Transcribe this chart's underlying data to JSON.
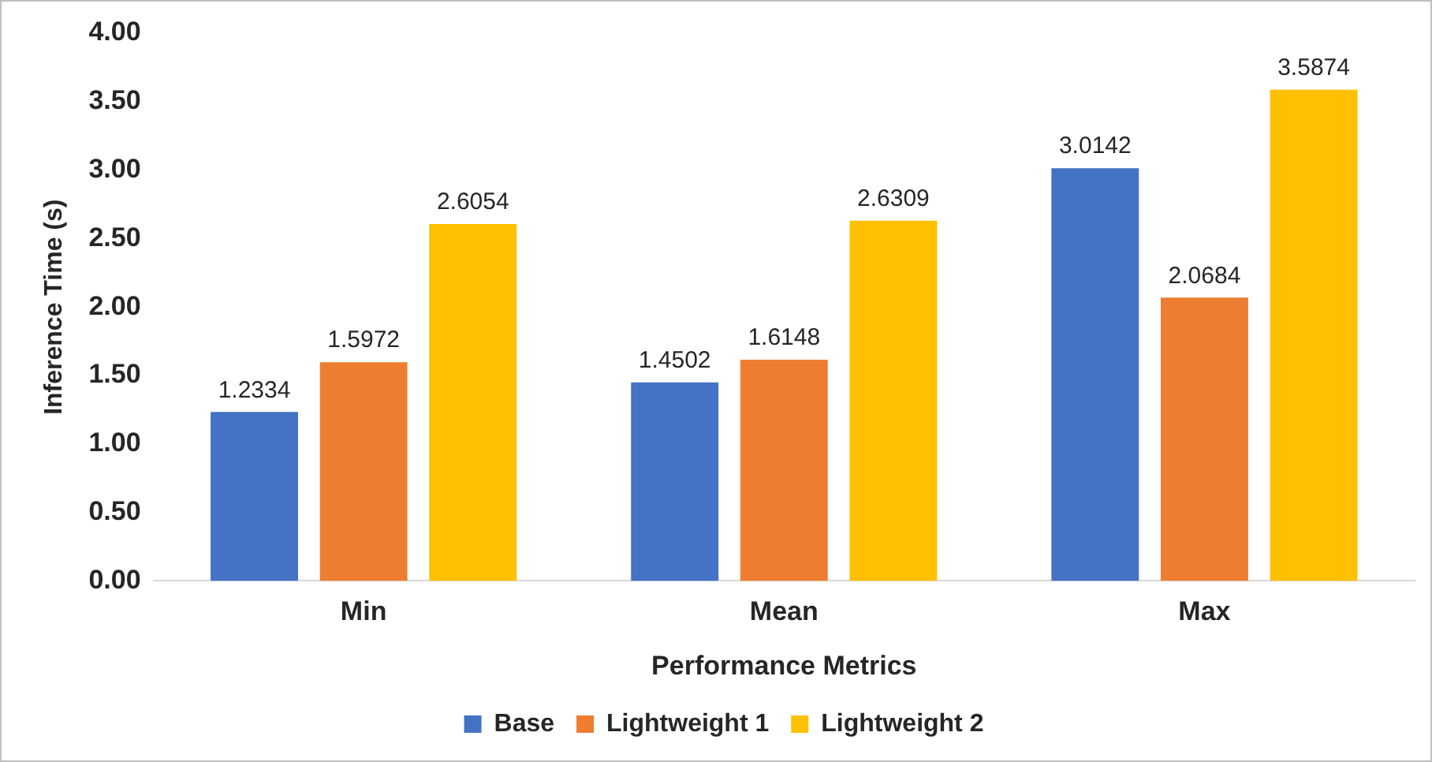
{
  "chart_data": {
    "type": "bar",
    "xlabel": "Performance Metrics",
    "ylabel": "Inference Time (s)",
    "categories": [
      "Min",
      "Mean",
      "Max"
    ],
    "series": [
      {
        "name": "Base",
        "color": "#4472c4",
        "values": [
          1.2334,
          1.4502,
          3.0142
        ]
      },
      {
        "name": "Lightweight 1",
        "color": "#ed7d31",
        "values": [
          1.5972,
          1.6148,
          2.0684
        ]
      },
      {
        "name": "Lightweight 2",
        "color": "#ffc000",
        "values": [
          2.6054,
          2.6309,
          3.5874
        ]
      }
    ],
    "ylim": [
      0,
      4
    ],
    "yticks": [
      {
        "value": 0,
        "label": "0.00"
      },
      {
        "value": 0.5,
        "label": "0.50"
      },
      {
        "value": 1,
        "label": "1.00"
      },
      {
        "value": 1.5,
        "label": "1.50"
      },
      {
        "value": 2,
        "label": "2.00"
      },
      {
        "value": 2.5,
        "label": "2.50"
      },
      {
        "value": 3,
        "label": "3.00"
      },
      {
        "value": 3.5,
        "label": "3.50"
      },
      {
        "value": 4,
        "label": "4.00"
      }
    ],
    "grid": false,
    "legend": "bottom",
    "data_labels": true
  }
}
